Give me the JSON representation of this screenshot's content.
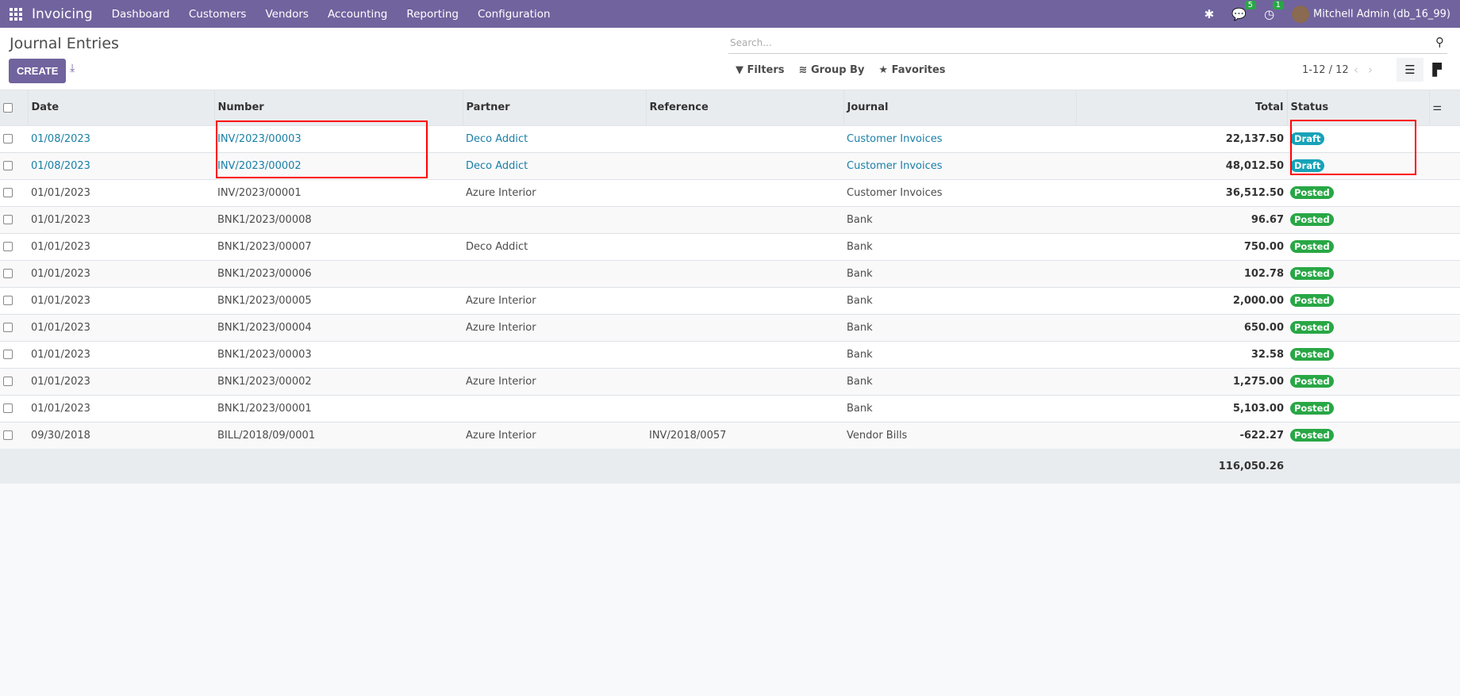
{
  "nav": {
    "app": "Invoicing",
    "menu": [
      "Dashboard",
      "Customers",
      "Vendors",
      "Accounting",
      "Reporting",
      "Configuration"
    ],
    "messages_count": "5",
    "activities_count": "1",
    "user": "Mitchell Admin (db_16_99)"
  },
  "page": {
    "title": "Journal Entries",
    "create": "CREATE",
    "search_placeholder": "Search...",
    "filters": "Filters",
    "group_by": "Group By",
    "favorites": "Favorites",
    "pager": "1-12 / 12"
  },
  "columns": [
    "Date",
    "Number",
    "Partner",
    "Reference",
    "Journal",
    "Total",
    "Status"
  ],
  "rows": [
    [
      "01/08/2023",
      "INV/2023/00003",
      "Deco Addict",
      "",
      "Customer Invoices",
      "22,137.50",
      "Draft"
    ],
    [
      "01/08/2023",
      "INV/2023/00002",
      "Deco Addict",
      "",
      "Customer Invoices",
      "48,012.50",
      "Draft"
    ],
    [
      "01/01/2023",
      "INV/2023/00001",
      "Azure Interior",
      "",
      "Customer Invoices",
      "36,512.50",
      "Posted"
    ],
    [
      "01/01/2023",
      "BNK1/2023/00008",
      "",
      "",
      "Bank",
      "96.67",
      "Posted"
    ],
    [
      "01/01/2023",
      "BNK1/2023/00007",
      "Deco Addict",
      "",
      "Bank",
      "750.00",
      "Posted"
    ],
    [
      "01/01/2023",
      "BNK1/2023/00006",
      "",
      "",
      "Bank",
      "102.78",
      "Posted"
    ],
    [
      "01/01/2023",
      "BNK1/2023/00005",
      "Azure Interior",
      "",
      "Bank",
      "2,000.00",
      "Posted"
    ],
    [
      "01/01/2023",
      "BNK1/2023/00004",
      "Azure Interior",
      "",
      "Bank",
      "650.00",
      "Posted"
    ],
    [
      "01/01/2023",
      "BNK1/2023/00003",
      "",
      "",
      "Bank",
      "32.58",
      "Posted"
    ],
    [
      "01/01/2023",
      "BNK1/2023/00002",
      "Azure Interior",
      "",
      "Bank",
      "1,275.00",
      "Posted"
    ],
    [
      "01/01/2023",
      "BNK1/2023/00001",
      "",
      "",
      "Bank",
      "5,103.00",
      "Posted"
    ],
    [
      "09/30/2018",
      "BILL/2018/09/0001",
      "Azure Interior",
      "INV/2018/0057",
      "Vendor Bills",
      "-622.27",
      "Posted"
    ]
  ],
  "grand_total": "116,050.26",
  "colors": {
    "brand": "#71639e",
    "draft": "#17a2b8",
    "posted": "#28a745",
    "highlight": "#ff0000"
  }
}
